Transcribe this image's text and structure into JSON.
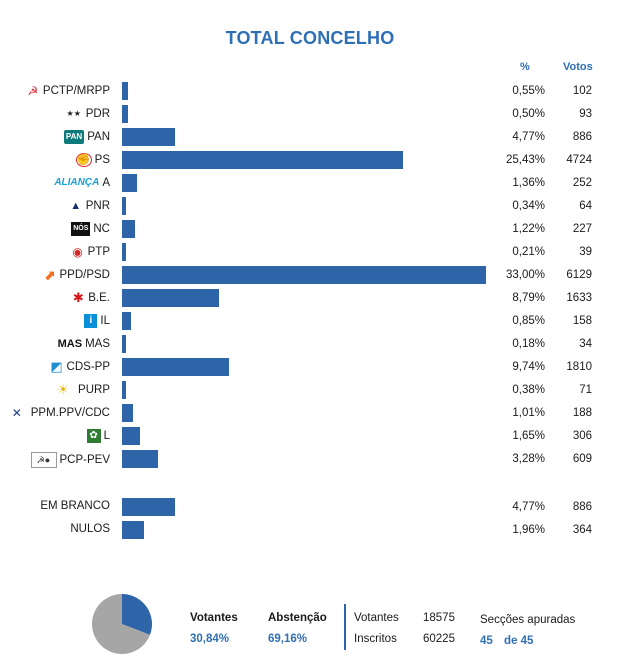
{
  "colors": {
    "bar": "#2e64a8",
    "accent": "#2f6fb5",
    "pie_votantes": "#2e64a8",
    "pie_abstencao": "#a6a6a6"
  },
  "chart_data": {
    "type": "bar",
    "orientation": "horizontal",
    "title": "TOTAL CONCELHO",
    "columns": {
      "percent": "%",
      "votes": "Votos"
    },
    "series": [
      {
        "label": "PCTP/MRPP",
        "percent": 0.55,
        "percent_label": "0,55%",
        "votes": "102",
        "logo": "hammer-sickle-icon"
      },
      {
        "label": "PDR",
        "percent": 0.5,
        "percent_label": "0,50%",
        "votes": "93",
        "logo": "stars-icon"
      },
      {
        "label": "PAN",
        "percent": 4.77,
        "percent_label": "4,77%",
        "votes": "886",
        "logo": "pan-logo-icon",
        "logo_text": "PAN"
      },
      {
        "label": "PS",
        "percent": 25.43,
        "percent_label": "25,43%",
        "votes": "4724",
        "logo": "fist-rose-icon"
      },
      {
        "label": "A",
        "percent": 1.36,
        "percent_label": "1,36%",
        "votes": "252",
        "logo": "alianca-logo-icon",
        "logo_text": "ALIANÇA"
      },
      {
        "label": "PNR",
        "percent": 0.34,
        "percent_label": "0,34%",
        "votes": "64",
        "logo": "flame-icon"
      },
      {
        "label": "NC",
        "percent": 1.22,
        "percent_label": "1,22%",
        "votes": "227",
        "logo": "nc-logo-icon",
        "logo_text": "NÓS"
      },
      {
        "label": "PTP",
        "percent": 0.21,
        "percent_label": "0,21%",
        "votes": "39",
        "logo": "ptp-logo-icon"
      },
      {
        "label": "PPD/PSD",
        "percent": 33.0,
        "percent_label": "33,00%",
        "votes": "6129",
        "logo": "arrow-up-icon"
      },
      {
        "label": "B.E.",
        "percent": 8.79,
        "percent_label": "8,79%",
        "votes": "1633",
        "logo": "star-figure-icon"
      },
      {
        "label": "IL",
        "percent": 0.85,
        "percent_label": "0,85%",
        "votes": "158",
        "logo": "info-icon"
      },
      {
        "label": "MAS",
        "percent": 0.18,
        "percent_label": "0,18%",
        "votes": "34",
        "logo": "mas-logo-icon",
        "logo_text": "MAS"
      },
      {
        "label": "CDS-PP",
        "percent": 9.74,
        "percent_label": "9,74%",
        "votes": "1810",
        "logo": "cds-logo-icon"
      },
      {
        "label": "PURP",
        "percent": 0.38,
        "percent_label": "0,38%",
        "votes": "71",
        "logo": "sun-icon"
      },
      {
        "label": "PPM.PPV/CDC",
        "percent": 1.01,
        "percent_label": "1,01%",
        "votes": "188",
        "logo": "coalition-logo-icon"
      },
      {
        "label": "L",
        "percent": 1.65,
        "percent_label": "1,65%",
        "votes": "306",
        "logo": "poppy-icon"
      },
      {
        "label": "PCP-PEV",
        "percent": 3.28,
        "percent_label": "3,28%",
        "votes": "609",
        "logo": "hammer-sickle-sunflower-icon"
      },
      {
        "label": "EM BRANCO",
        "percent": 4.77,
        "percent_label": "4,77%",
        "votes": "886",
        "logo": ""
      },
      {
        "label": "NULOS",
        "percent": 1.96,
        "percent_label": "1,96%",
        "votes": "364",
        "logo": ""
      }
    ],
    "xlim": [
      0,
      33.0
    ],
    "turnout_pie": [
      {
        "name": "Votantes",
        "value": 30.84
      },
      {
        "name": "Abstenção",
        "value": 69.16
      }
    ]
  },
  "footer": {
    "votantes_label": "Votantes",
    "votantes_pct": "30,84%",
    "abstencao_label": "Abstenção",
    "abstencao_pct": "69,16%",
    "votantes_count_label": "Votantes",
    "votantes_count": "18575",
    "inscritos_label": "Inscritos",
    "inscritos_count": "60225",
    "seccoes_label": "Secções apuradas",
    "seccoes_done": "45",
    "seccoes_of": "de 45"
  }
}
